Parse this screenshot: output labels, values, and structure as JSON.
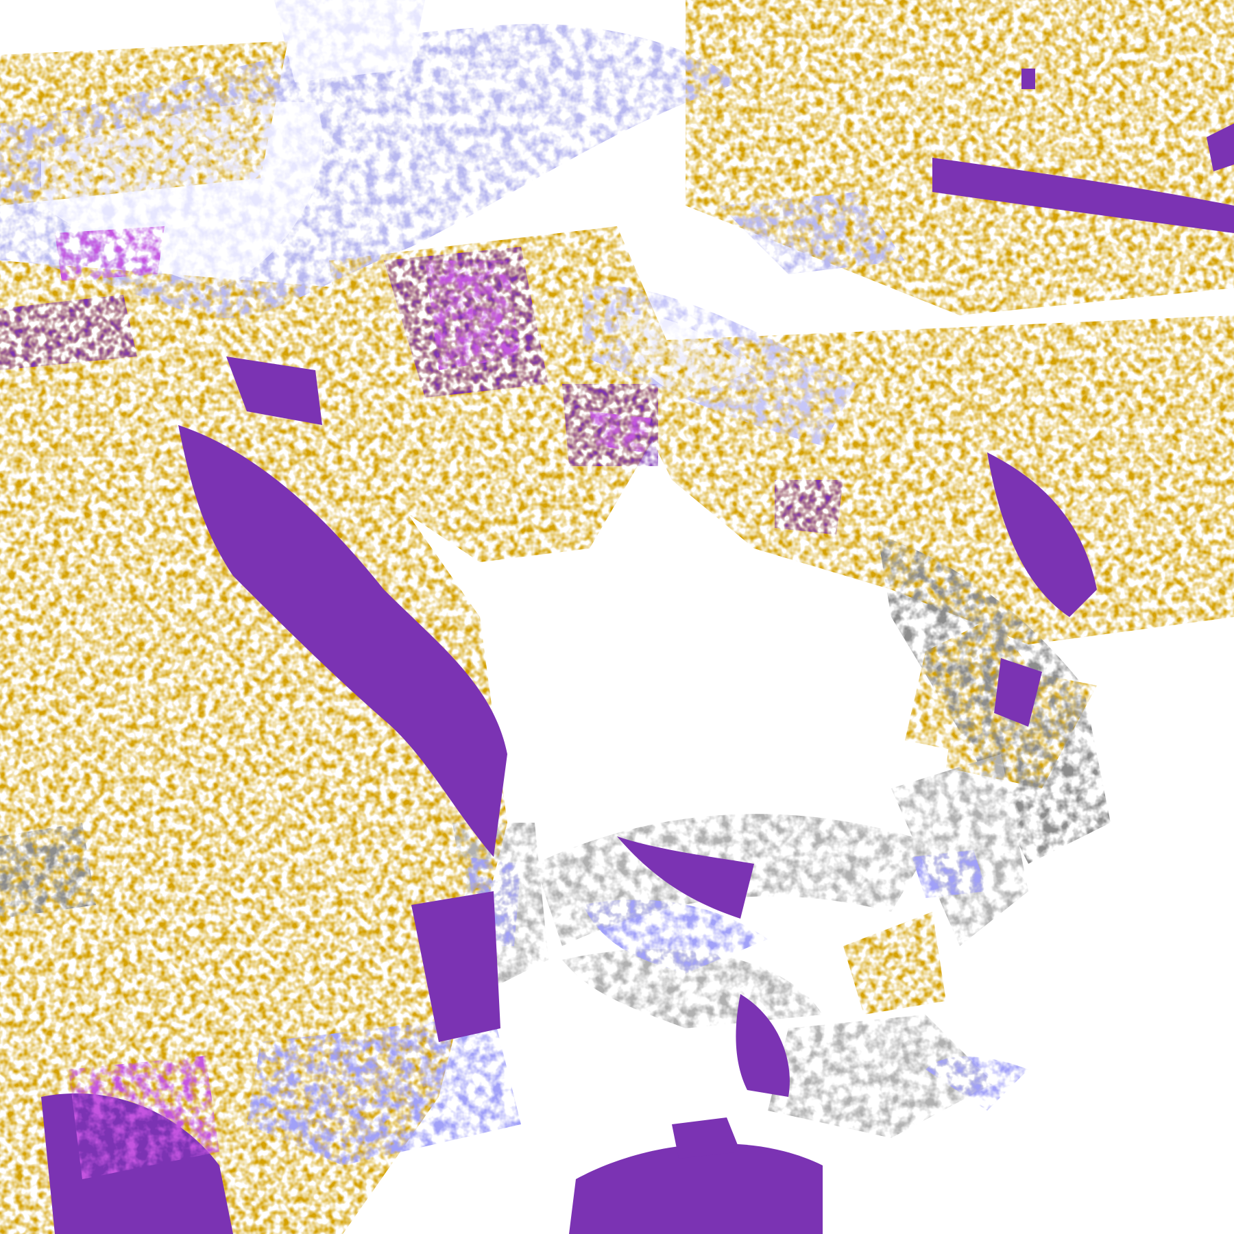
{
  "image": {
    "kind": "satellite cloud-classification imagery",
    "colors": {
      "background": "#ffffff",
      "gold": "#d4a000",
      "purple": "#7b33b3",
      "magenta": "#c455e0",
      "lavender": "#a0a0f8",
      "pale_lavender": "#e6e6ff",
      "light_grey": "#b0b0b0",
      "dark_grey": "#8c8c8c"
    }
  }
}
